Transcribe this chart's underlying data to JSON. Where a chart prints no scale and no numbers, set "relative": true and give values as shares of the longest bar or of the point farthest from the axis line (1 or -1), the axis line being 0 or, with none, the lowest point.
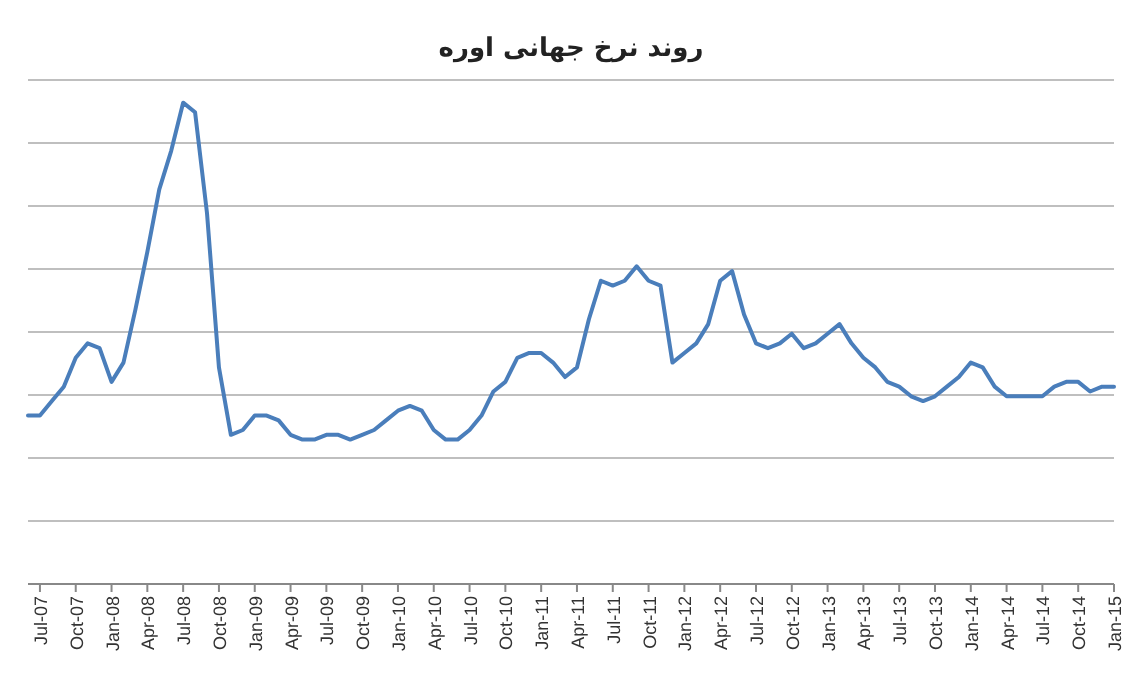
{
  "chart_data": {
    "type": "line",
    "title": "روند نرخ جهانی اوره",
    "relative": true,
    "grid": "y",
    "xlim": [
      "2007-06",
      "2015-01"
    ],
    "xticks": [
      {
        "value": "2007-07",
        "label": "Jul-07"
      },
      {
        "value": "2007-10",
        "label": "Oct-07"
      },
      {
        "value": "2008-01",
        "label": "Jan-08"
      },
      {
        "value": "2008-04",
        "label": "Apr-08"
      },
      {
        "value": "2008-07",
        "label": "Jul-08"
      },
      {
        "value": "2008-10",
        "label": "Oct-08"
      },
      {
        "value": "2009-01",
        "label": "Jan-09"
      },
      {
        "value": "2009-04",
        "label": "Apr-09"
      },
      {
        "value": "2009-07",
        "label": "Jul-09"
      },
      {
        "value": "2009-10",
        "label": "Oct-09"
      },
      {
        "value": "2010-01",
        "label": "Jan-10"
      },
      {
        "value": "2010-04",
        "label": "Apr-10"
      },
      {
        "value": "2010-07",
        "label": "Jul-10"
      },
      {
        "value": "2010-10",
        "label": "Oct-10"
      },
      {
        "value": "2011-01",
        "label": "Jan-11"
      },
      {
        "value": "2011-04",
        "label": "Apr-11"
      },
      {
        "value": "2011-07",
        "label": "Jul-11"
      },
      {
        "value": "2011-10",
        "label": "Oct-11"
      },
      {
        "value": "2012-01",
        "label": "Jan-12"
      },
      {
        "value": "2012-04",
        "label": "Apr-12"
      },
      {
        "value": "2012-07",
        "label": "Jul-12"
      },
      {
        "value": "2012-10",
        "label": "Oct-12"
      },
      {
        "value": "2013-01",
        "label": "Jan-13"
      },
      {
        "value": "2013-04",
        "label": "Apr-13"
      },
      {
        "value": "2013-07",
        "label": "Jul-13"
      },
      {
        "value": "2013-10",
        "label": "Oct-13"
      },
      {
        "value": "2014-01",
        "label": "Jan-14"
      },
      {
        "value": "2014-04",
        "label": "Apr-14"
      },
      {
        "value": "2014-07",
        "label": "Jul-14"
      },
      {
        "value": "2014-10",
        "label": "Oct-14"
      },
      {
        "value": "2015-01",
        "label": "Jan-15"
      }
    ],
    "x": [
      "2007-06",
      "2007-07",
      "2007-08",
      "2007-09",
      "2007-10",
      "2007-11",
      "2007-12",
      "2008-01",
      "2008-02",
      "2008-03",
      "2008-04",
      "2008-05",
      "2008-06",
      "2008-07",
      "2008-08",
      "2008-09",
      "2008-10",
      "2008-11",
      "2008-12",
      "2009-01",
      "2009-02",
      "2009-03",
      "2009-04",
      "2009-05",
      "2009-06",
      "2009-07",
      "2009-08",
      "2009-09",
      "2009-10",
      "2009-11",
      "2009-12",
      "2010-01",
      "2010-02",
      "2010-03",
      "2010-04",
      "2010-05",
      "2010-06",
      "2010-07",
      "2010-08",
      "2010-09",
      "2010-10",
      "2010-11",
      "2010-12",
      "2011-01",
      "2011-02",
      "2011-03",
      "2011-04",
      "2011-05",
      "2011-06",
      "2011-07",
      "2011-08",
      "2011-09",
      "2011-10",
      "2011-11",
      "2011-12",
      "2012-01",
      "2012-02",
      "2012-03",
      "2012-04",
      "2012-05",
      "2012-06",
      "2012-07",
      "2012-08",
      "2012-09",
      "2012-10",
      "2012-11",
      "2012-12",
      "2013-01",
      "2013-02",
      "2013-03",
      "2013-04",
      "2013-05",
      "2013-06",
      "2013-07",
      "2013-08",
      "2013-09",
      "2013-10",
      "2013-11",
      "2013-12",
      "2014-01",
      "2014-02",
      "2014-03",
      "2014-04",
      "2014-05",
      "2014-06",
      "2014-07",
      "2014-08",
      "2014-09",
      "2014-10",
      "2014-11",
      "2014-12",
      "2015-01"
    ],
    "series": [
      {
        "color": "#4a7ebb",
        "values": [
          0.35,
          0.35,
          0.38,
          0.41,
          0.47,
          0.5,
          0.49,
          0.42,
          0.46,
          0.57,
          0.69,
          0.82,
          0.9,
          1,
          0.98,
          0.77,
          0.45,
          0.31,
          0.32,
          0.35,
          0.35,
          0.34,
          0.31,
          0.3,
          0.3,
          0.31,
          0.31,
          0.3,
          0.31,
          0.32,
          0.34,
          0.36,
          0.37,
          0.36,
          0.32,
          0.3,
          0.3,
          0.32,
          0.35,
          0.4,
          0.42,
          0.47,
          0.48,
          0.48,
          0.46,
          0.43,
          0.45,
          0.55,
          0.63,
          0.62,
          0.63,
          0.66,
          0.63,
          0.62,
          0.46,
          0.48,
          0.5,
          0.54,
          0.63,
          0.65,
          0.56,
          0.5,
          0.49,
          0.5,
          0.52,
          0.49,
          0.5,
          0.52,
          0.54,
          0.5,
          0.47,
          0.45,
          0.42,
          0.41,
          0.39,
          0.38,
          0.39,
          0.41,
          0.43,
          0.46,
          0.45,
          0.41,
          0.39,
          0.39,
          0.39,
          0.39,
          0.41,
          0.42,
          0.42,
          0.4,
          0.41,
          0.41
        ]
      }
    ]
  }
}
